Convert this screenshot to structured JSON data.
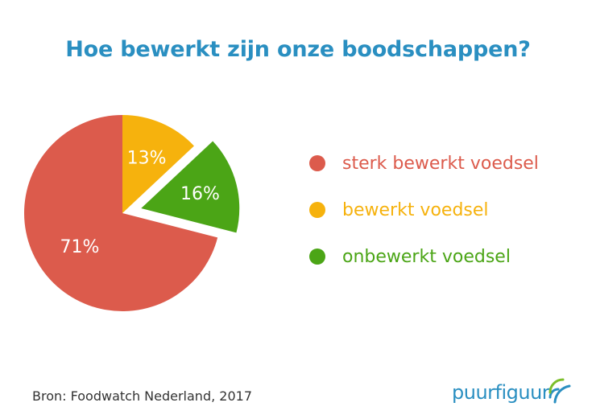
{
  "title": "Hoe bewerkt zijn onze boodschappen?",
  "colors": {
    "title": "#2a8fc1",
    "red": "#dc5b4c",
    "yellow": "#f6b20d",
    "green": "#4ba516",
    "logo_blue": "#2a8fc1",
    "logo_green": "#7cbf2b"
  },
  "chart_data": {
    "type": "pie",
    "title": "Hoe bewerkt zijn onze boodschappen?",
    "slices": [
      {
        "label": "sterk bewerkt voedsel",
        "value": 71,
        "display": "71%",
        "color": "#dc5b4c",
        "exploded": false
      },
      {
        "label": "bewerkt voedsel",
        "value": 13,
        "display": "13%",
        "color": "#f6b20d",
        "exploded": false
      },
      {
        "label": "onbewerkt voedsel",
        "value": 16,
        "display": "16%",
        "color": "#4ba516",
        "exploded": true
      }
    ],
    "legend_position": "right"
  },
  "legend": [
    {
      "label": "sterk bewerkt voedsel",
      "color": "#dc5b4c"
    },
    {
      "label": "bewerkt voedsel",
      "color": "#f6b20d"
    },
    {
      "label": "onbewerkt voedsel",
      "color": "#4ba516"
    }
  ],
  "source": "Bron: Foodwatch Nederland, 2017",
  "logo": {
    "text": "puurfiguur",
    "icon": "signal-arc-icon"
  }
}
